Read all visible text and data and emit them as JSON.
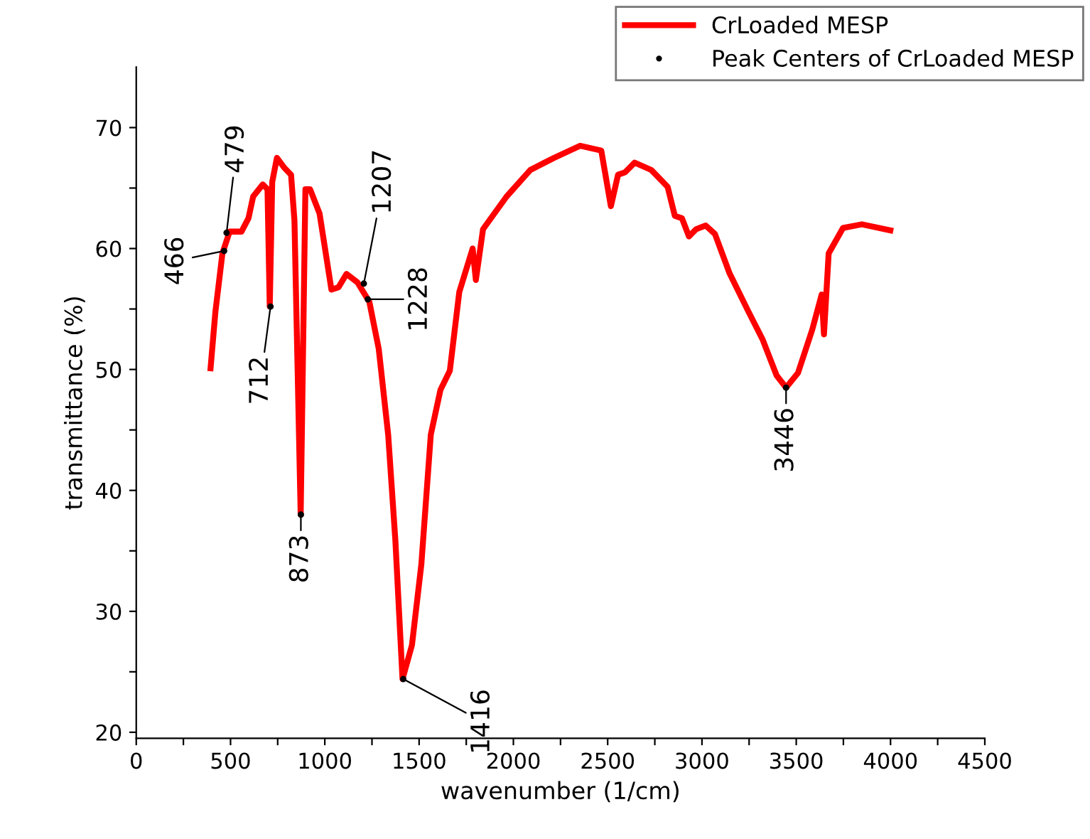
{
  "chart_data": {
    "type": "line",
    "xlabel": "wavenumber (1/cm)",
    "ylabel": "transmittance (%)",
    "xlim": [
      0,
      4500
    ],
    "ylim": [
      19.5,
      75
    ],
    "xticks": [
      0,
      {
        "value": 250,
        "label": null
      },
      500,
      {
        "value": 750,
        "label": null
      },
      1000,
      {
        "value": 1250,
        "label": null
      },
      1500,
      {
        "value": 1750,
        "label": null
      },
      2000,
      {
        "value": 2250,
        "label": null
      },
      2500,
      {
        "value": 2750,
        "label": null
      },
      3000,
      {
        "value": 3250,
        "label": null
      },
      3500,
      {
        "value": 3750,
        "label": null
      },
      4000,
      {
        "value": 4250,
        "label": null
      },
      4500
    ],
    "yticks": [
      20,
      {
        "value": 25,
        "label": null
      },
      30,
      {
        "value": 35,
        "label": null
      },
      40,
      {
        "value": 45,
        "label": null
      },
      50,
      {
        "value": 55,
        "label": null
      },
      60,
      {
        "value": 65,
        "label": null
      },
      70
    ],
    "grid": false,
    "legend": "top right",
    "series": [
      {
        "name": "CrLoaded MESP",
        "color": "#ff0000",
        "x": [
          394,
          420,
          457,
          495,
          558,
          595,
          620,
          671,
          696,
          708,
          721,
          746,
          784,
          821,
          839,
          872,
          897,
          922,
          972,
          1035,
          1073,
          1115,
          1173,
          1236,
          1286,
          1336,
          1374,
          1412,
          1462,
          1512,
          1562,
          1613,
          1663,
          1713,
          1784,
          1801,
          1839,
          1964,
          2090,
          2140,
          2216,
          2354,
          2466,
          2517,
          2555,
          2592,
          2643,
          2731,
          2818,
          2856,
          2894,
          2931,
          2969,
          3020,
          3069,
          3145,
          3246,
          3321,
          3396,
          3446,
          3509,
          3585,
          3635,
          3647,
          3672,
          3748,
          3848,
          3999
        ],
        "values": [
          50.1,
          54.8,
          59.6,
          61.4,
          61.4,
          62.5,
          64.3,
          65.3,
          64.9,
          55.2,
          65.5,
          67.5,
          66.7,
          66.1,
          62.3,
          38.0,
          64.9,
          64.9,
          62.9,
          56.6,
          56.8,
          57.9,
          57.2,
          55.6,
          51.7,
          44.6,
          35.9,
          24.4,
          27.2,
          33.9,
          44.6,
          48.3,
          49.9,
          56.4,
          60.0,
          57.4,
          61.6,
          64.3,
          66.5,
          66.9,
          67.5,
          68.5,
          68.1,
          63.5,
          66.1,
          66.3,
          67.1,
          66.5,
          65.1,
          62.7,
          62.5,
          61.0,
          61.6,
          61.9,
          61.2,
          58.0,
          54.8,
          52.5,
          49.5,
          48.5,
          49.7,
          53.3,
          56.2,
          52.9,
          59.6,
          61.7,
          62.0,
          61.5
        ]
      },
      {
        "name": "Peak Centers of CrLoaded MESP",
        "type": "scatter",
        "marker": "circle",
        "color": "#000000",
        "x": [
          466,
          479,
          712,
          873,
          1207,
          1228,
          1416,
          3446
        ],
        "values": [
          59.8,
          61.3,
          55.2,
          38.0,
          57.1,
          55.8,
          24.4,
          48.5
        ]
      }
    ],
    "annotations": [
      {
        "text": "466",
        "x": 466,
        "y": 59.8
      },
      {
        "text": "479",
        "x": 479,
        "y": 61.3
      },
      {
        "text": "712",
        "x": 712,
        "y": 55.2
      },
      {
        "text": "873",
        "x": 873,
        "y": 38.0
      },
      {
        "text": "1207",
        "x": 1207,
        "y": 57.1
      },
      {
        "text": "1228",
        "x": 1228,
        "y": 55.8
      },
      {
        "text": "1416",
        "x": 1416,
        "y": 24.4
      },
      {
        "text": "3446",
        "x": 3446,
        "y": 48.5
      }
    ]
  }
}
